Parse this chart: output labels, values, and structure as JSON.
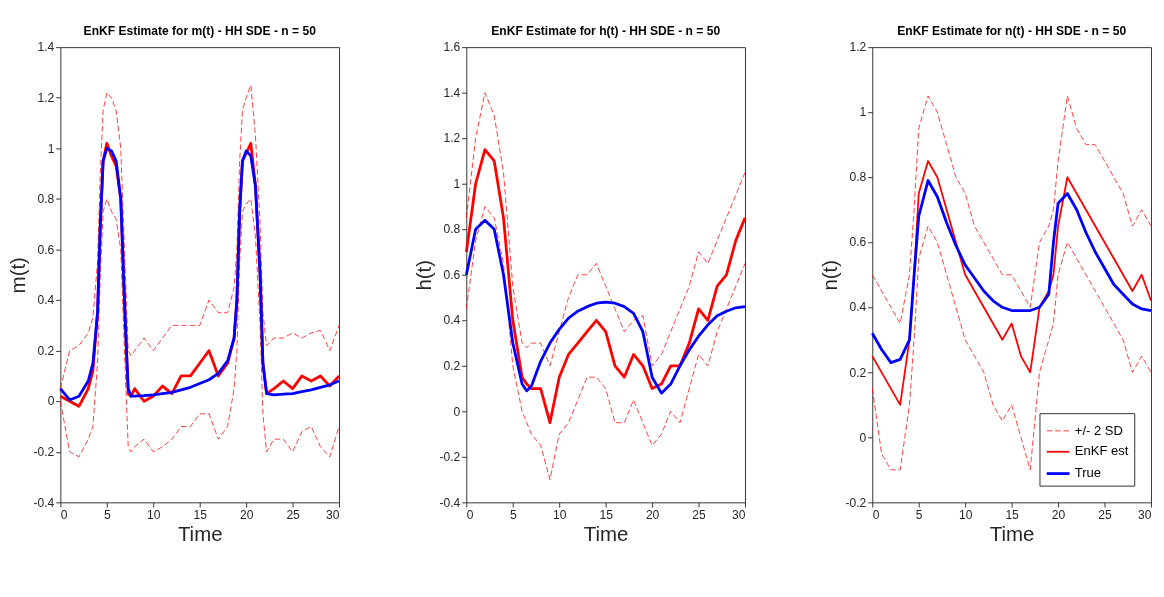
{
  "chart_data": [
    {
      "type": "line",
      "title": "EnKF Estimate for m(t) - HH SDE - n = 50",
      "xlabel": "Time",
      "ylabel": "m(t)",
      "x": [
        0,
        1,
        2,
        3,
        3.5,
        4,
        4.3,
        4.6,
        5,
        5.5,
        6,
        6.5,
        7,
        7.3,
        7.6,
        8,
        9,
        10,
        11,
        12,
        13,
        14,
        15,
        16,
        17,
        18,
        18.7,
        19,
        19.3,
        19.6,
        20,
        20.5,
        21,
        21.5,
        21.8,
        22.2,
        23,
        24,
        25,
        26,
        27,
        28,
        29,
        30
      ],
      "xlim": [
        0,
        30
      ],
      "xticks": [
        0,
        5,
        10,
        15,
        20,
        25,
        30
      ],
      "ylim": [
        -0.4,
        1.4
      ],
      "yticks": [
        -0.4,
        -0.2,
        0,
        0.2,
        0.4,
        0.6,
        0.8,
        1,
        1.2,
        1.4
      ],
      "grid": false,
      "legend": false,
      "series": [
        {
          "color": "#ff0000",
          "line_style": "dashed",
          "values": [
            0.05,
            0.2,
            0.22,
            0.27,
            0.33,
            0.55,
            0.9,
            1.15,
            1.22,
            1.2,
            1.15,
            1.0,
            0.5,
            0.2,
            0.18,
            0.2,
            0.25,
            0.2,
            0.25,
            0.3,
            0.3,
            0.3,
            0.3,
            0.4,
            0.35,
            0.35,
            0.45,
            0.6,
            0.95,
            1.15,
            1.2,
            1.25,
            1.05,
            0.7,
            0.35,
            0.22,
            0.25,
            0.25,
            0.27,
            0.25,
            0.27,
            0.28,
            0.2,
            0.3
          ]
        },
        {
          "color": "#ff0000",
          "line_style": "dashed",
          "values": [
            0.0,
            -0.2,
            -0.22,
            -0.15,
            -0.1,
            0.15,
            0.5,
            0.75,
            0.8,
            0.75,
            0.72,
            0.6,
            0.1,
            -0.18,
            -0.2,
            -0.18,
            -0.15,
            -0.2,
            -0.18,
            -0.15,
            -0.1,
            -0.1,
            -0.05,
            -0.05,
            -0.15,
            -0.1,
            0.05,
            0.2,
            0.55,
            0.75,
            0.78,
            0.8,
            0.65,
            0.3,
            -0.05,
            -0.2,
            -0.15,
            -0.15,
            -0.2,
            -0.12,
            -0.1,
            -0.18,
            -0.22,
            -0.1
          ]
        },
        {
          "color": "#ff0000",
          "line_style": "solid",
          "values": [
            0.02,
            0.0,
            -0.02,
            0.05,
            0.12,
            0.35,
            0.7,
            0.95,
            1.02,
            0.97,
            0.93,
            0.8,
            0.3,
            0.03,
            0.02,
            0.05,
            0.0,
            0.02,
            0.06,
            0.03,
            0.1,
            0.1,
            0.15,
            0.2,
            0.1,
            0.15,
            0.25,
            0.4,
            0.75,
            0.95,
            0.98,
            1.02,
            0.85,
            0.5,
            0.15,
            0.03,
            0.05,
            0.08,
            0.05,
            0.1,
            0.08,
            0.1,
            0.06,
            0.1
          ]
        },
        {
          "color": "#0000ff",
          "line_style": "solid",
          "values": [
            0.05,
            0.005,
            0.02,
            0.08,
            0.15,
            0.35,
            0.7,
            0.95,
            1.0,
            0.99,
            0.95,
            0.8,
            0.3,
            0.05,
            0.02,
            0.02,
            0.022,
            0.025,
            0.03,
            0.035,
            0.045,
            0.055,
            0.07,
            0.085,
            0.11,
            0.16,
            0.25,
            0.4,
            0.75,
            0.95,
            0.99,
            0.97,
            0.85,
            0.5,
            0.15,
            0.03,
            0.025,
            0.028,
            0.03,
            0.038,
            0.045,
            0.055,
            0.065,
            0.08
          ]
        }
      ]
    },
    {
      "type": "line",
      "title": "EnKF Estimate for h(t) - HH SDE - n = 50",
      "xlabel": "Time",
      "ylabel": "h(t)",
      "x": [
        0,
        1,
        2,
        3,
        4,
        5,
        6,
        6.5,
        7,
        8,
        9,
        10,
        11,
        12,
        13,
        14,
        15,
        16,
        17,
        18,
        19,
        20,
        21,
        22,
        23,
        24,
        25,
        26,
        27,
        28,
        29,
        30
      ],
      "xlim": [
        0,
        30
      ],
      "xticks": [
        0,
        5,
        10,
        15,
        20,
        25,
        30
      ],
      "ylim": [
        -0.4,
        1.6
      ],
      "yticks": [
        -0.4,
        -0.2,
        0,
        0.2,
        0.4,
        0.6,
        0.8,
        1,
        1.2,
        1.4,
        1.6
      ],
      "grid": false,
      "legend": false,
      "series": [
        {
          "color": "#ff0000",
          "line_style": "dashed",
          "values": [
            0.85,
            1.2,
            1.4,
            1.3,
            1.05,
            0.55,
            0.3,
            0.28,
            0.3,
            0.3,
            0.2,
            0.35,
            0.5,
            0.6,
            0.6,
            0.65,
            0.55,
            0.45,
            0.35,
            0.4,
            0.42,
            0.2,
            0.25,
            0.35,
            0.45,
            0.55,
            0.7,
            0.65,
            0.75,
            0.85,
            0.95,
            1.05
          ]
        },
        {
          "color": "#ff0000",
          "line_style": "dashed",
          "values": [
            0.45,
            0.75,
            0.9,
            0.85,
            0.65,
            0.2,
            0.0,
            -0.05,
            -0.1,
            -0.15,
            -0.3,
            -0.1,
            -0.05,
            0.05,
            0.15,
            0.15,
            0.1,
            -0.05,
            -0.05,
            0.05,
            -0.05,
            -0.15,
            -0.1,
            0.0,
            -0.05,
            0.1,
            0.25,
            0.2,
            0.35,
            0.45,
            0.55,
            0.65
          ]
        },
        {
          "color": "#ff0000",
          "line_style": "solid",
          "values": [
            0.7,
            1.0,
            1.15,
            1.1,
            0.85,
            0.4,
            0.15,
            0.12,
            0.1,
            0.1,
            -0.05,
            0.15,
            0.25,
            0.3,
            0.35,
            0.4,
            0.35,
            0.2,
            0.15,
            0.25,
            0.2,
            0.1,
            0.12,
            0.2,
            0.2,
            0.3,
            0.45,
            0.4,
            0.55,
            0.6,
            0.75,
            0.85
          ]
        },
        {
          "color": "#0000ff",
          "line_style": "solid",
          "values": [
            0.6,
            0.8,
            0.84,
            0.8,
            0.6,
            0.3,
            0.12,
            0.09,
            0.11,
            0.22,
            0.3,
            0.36,
            0.41,
            0.44,
            0.46,
            0.475,
            0.48,
            0.475,
            0.46,
            0.43,
            0.35,
            0.15,
            0.08,
            0.12,
            0.2,
            0.27,
            0.33,
            0.38,
            0.42,
            0.44,
            0.455,
            0.46
          ]
        }
      ]
    },
    {
      "type": "line",
      "title": "EnKF Estimate for n(t) - HH SDE - n = 50",
      "xlabel": "Time",
      "ylabel": "n(t)",
      "x": [
        0,
        1,
        2,
        3,
        4,
        4.5,
        5,
        6,
        7,
        8,
        9,
        10,
        11,
        12,
        13,
        14,
        15,
        16,
        17,
        18,
        19,
        19.5,
        20,
        21,
        22,
        23,
        24,
        25,
        26,
        27,
        28,
        29,
        30
      ],
      "xlim": [
        0,
        30
      ],
      "xticks": [
        0,
        5,
        10,
        15,
        20,
        25,
        30
      ],
      "ylim": [
        -0.2,
        1.2
      ],
      "yticks": [
        -0.2,
        0,
        0.2,
        0.4,
        0.6,
        0.8,
        1,
        1.2
      ],
      "grid": false,
      "legend": "bottom right",
      "series": [
        {
          "name": "+/- 2 SD",
          "color": "#ff0000",
          "line_style": "dashed",
          "values": [
            0.5,
            0.45,
            0.4,
            0.35,
            0.5,
            0.7,
            0.95,
            1.05,
            1.0,
            0.9,
            0.8,
            0.75,
            0.65,
            0.6,
            0.55,
            0.5,
            0.5,
            0.45,
            0.4,
            0.6,
            0.65,
            0.7,
            0.85,
            1.05,
            0.95,
            0.9,
            0.9,
            0.85,
            0.8,
            0.75,
            0.65,
            0.7,
            0.65
          ]
        },
        {
          "color": "#ff0000",
          "line_style": "dashed",
          "values": [
            0.15,
            -0.05,
            -0.1,
            -0.1,
            0.1,
            0.3,
            0.55,
            0.65,
            0.6,
            0.5,
            0.4,
            0.3,
            0.25,
            0.2,
            0.1,
            0.05,
            0.1,
            0.0,
            -0.1,
            0.2,
            0.3,
            0.35,
            0.5,
            0.6,
            0.55,
            0.5,
            0.45,
            0.4,
            0.35,
            0.3,
            0.2,
            0.25,
            0.2
          ]
        },
        {
          "name": "EnKF est",
          "color": "#ff0000",
          "line_style": "solid",
          "values": [
            0.25,
            0.2,
            0.15,
            0.1,
            0.3,
            0.5,
            0.75,
            0.85,
            0.8,
            0.7,
            0.6,
            0.5,
            0.45,
            0.4,
            0.35,
            0.3,
            0.35,
            0.25,
            0.2,
            0.4,
            0.45,
            0.5,
            0.65,
            0.8,
            0.75,
            0.7,
            0.65,
            0.6,
            0.55,
            0.5,
            0.45,
            0.5,
            0.42
          ]
        },
        {
          "name": "True",
          "color": "#0000ff",
          "line_style": "solid",
          "values": [
            0.32,
            0.27,
            0.23,
            0.24,
            0.3,
            0.5,
            0.68,
            0.79,
            0.74,
            0.66,
            0.59,
            0.53,
            0.49,
            0.45,
            0.42,
            0.4,
            0.39,
            0.39,
            0.39,
            0.4,
            0.44,
            0.6,
            0.72,
            0.75,
            0.7,
            0.63,
            0.57,
            0.52,
            0.47,
            0.44,
            0.41,
            0.395,
            0.39
          ]
        }
      ]
    }
  ]
}
